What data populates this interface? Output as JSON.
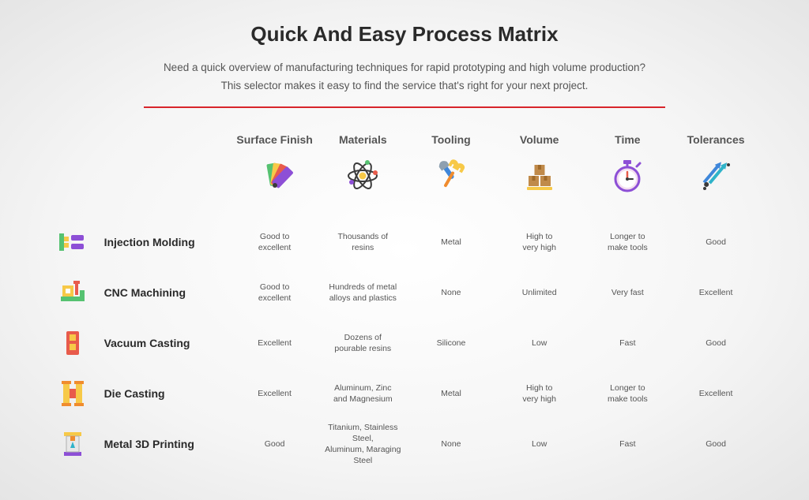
{
  "title": "Quick And Easy Process Matrix",
  "subtitle_line1": "Need a quick overview of manufacturing techniques for rapid prototyping and high volume production?",
  "subtitle_line2": "This selector makes it easy to find the service that's right for your next project.",
  "divider_color": "#d8252b",
  "colors": {
    "heading_text": "#2a2a2a",
    "body_text": "#555555",
    "bg_center": "#ffffff",
    "bg_edge": "#e5e5e5"
  },
  "columns": [
    {
      "key": "surface",
      "label": "Surface Finish"
    },
    {
      "key": "materials",
      "label": "Materials"
    },
    {
      "key": "tooling",
      "label": "Tooling"
    },
    {
      "key": "volume",
      "label": "Volume"
    },
    {
      "key": "time",
      "label": "Time"
    },
    {
      "key": "tolerances",
      "label": "Tolerances"
    }
  ],
  "rows": [
    {
      "name": "Injection Molding",
      "cells": [
        "Good to\nexcellent",
        "Thousands of\nresins",
        "Metal",
        "High to\nvery high",
        "Longer to\nmake tools",
        "Good"
      ]
    },
    {
      "name": "CNC Machining",
      "cells": [
        "Good to\nexcellent",
        "Hundreds of metal\nalloys and plastics",
        "None",
        "Unlimited",
        "Very fast",
        "Excellent"
      ]
    },
    {
      "name": "Vacuum Casting",
      "cells": [
        "Excellent",
        "Dozens of\npourable resins",
        "Silicone",
        "Low",
        "Fast",
        "Good"
      ]
    },
    {
      "name": "Die Casting",
      "cells": [
        "Excellent",
        "Aluminum, Zinc\nand Magnesium",
        "Metal",
        "High to\nvery high",
        "Longer to\nmake tools",
        "Excellent"
      ]
    },
    {
      "name": "Metal 3D Printing",
      "cells": [
        "Good",
        "Titanium, Stainless Steel,\nAluminum, Maraging Steel",
        "None",
        "Low",
        "Fast",
        "Good"
      ]
    }
  ],
  "icon_palette": {
    "yellow": "#f7c948",
    "orange": "#f08c2e",
    "purple": "#8d4fd6",
    "green": "#56c271",
    "red": "#e85b4b",
    "blue": "#3f87da",
    "teal": "#2fb3c9",
    "brown": "#c08a4a",
    "dark": "#3a3a3a",
    "pink": "#e073b5",
    "magenta": "#c23f8f"
  }
}
